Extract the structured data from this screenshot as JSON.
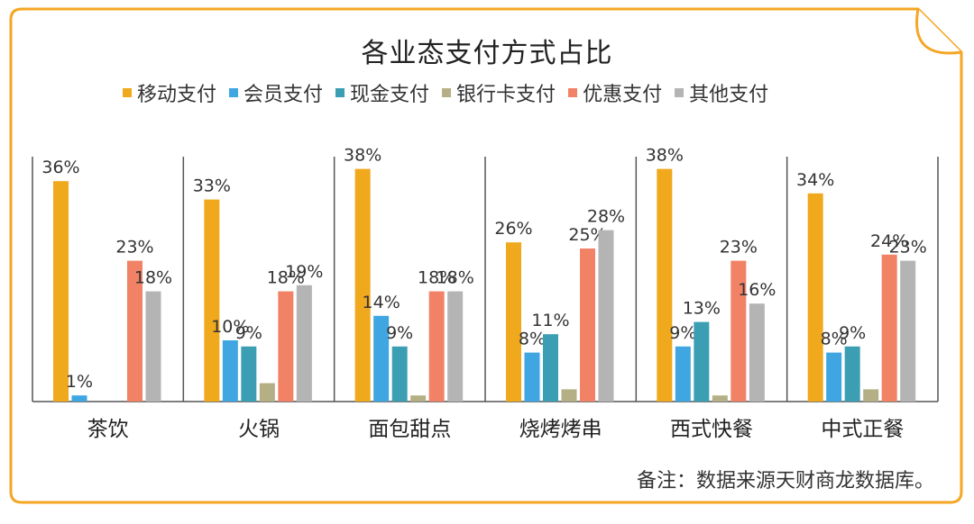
{
  "chart_data": {
    "type": "bar",
    "title": "各业态支付方式占比",
    "categories": [
      "茶饮",
      "火锅",
      "面包甜点",
      "烧烤烤串",
      "西式快餐",
      "中式正餐"
    ],
    "series": [
      {
        "name": "移动支付",
        "color": "#F0A81C",
        "values": [
          36,
          33,
          38,
          26,
          38,
          34
        ],
        "labels": [
          "36%",
          "33%",
          "38%",
          "26%",
          "38%",
          "34%"
        ]
      },
      {
        "name": "会员支付",
        "color": "#3FA6E2",
        "values": [
          1,
          10,
          14,
          8,
          9,
          8
        ],
        "labels": [
          "1%",
          "10%",
          "14%",
          "8%",
          "9%",
          "8%"
        ]
      },
      {
        "name": "现金支付",
        "color": "#3C9EB3",
        "values": [
          0,
          9,
          9,
          11,
          13,
          9
        ],
        "labels": [
          "",
          "9%",
          "9%",
          "11%",
          "13%",
          "9%"
        ]
      },
      {
        "name": "银行卡支付",
        "color": "#B5AF86",
        "values": [
          0,
          3,
          1,
          2,
          1,
          2
        ],
        "labels": [
          "",
          "",
          "",
          "",
          "",
          ""
        ]
      },
      {
        "name": "优惠支付",
        "color": "#F28266",
        "values": [
          23,
          18,
          18,
          25,
          23,
          24
        ],
        "labels": [
          "23%",
          "18%",
          "18%",
          "25%",
          "23%",
          "24%"
        ]
      },
      {
        "name": "其他支付",
        "color": "#B4B4B4",
        "values": [
          18,
          19,
          18,
          28,
          16,
          23
        ],
        "labels": [
          "18%",
          "19%",
          "18%",
          "28%",
          "16%",
          "23%"
        ]
      }
    ],
    "ylim": [
      0,
      40
    ],
    "grid": false,
    "legend": "top"
  },
  "note": "备注：数据来源天财商龙数据库。",
  "colors": {
    "frame": "#F5A623",
    "axis": "#555555"
  }
}
